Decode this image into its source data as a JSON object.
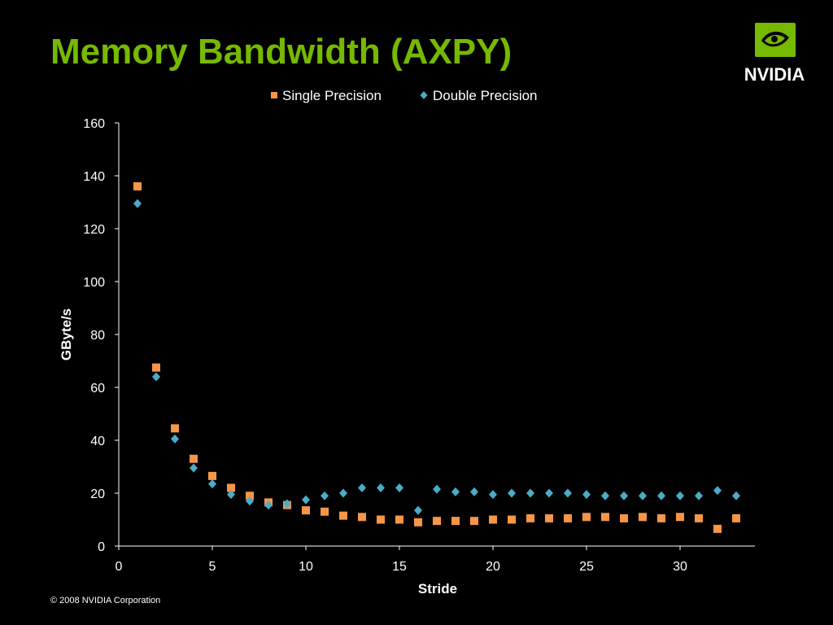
{
  "slide": {
    "title": "Memory Bandwidth (AXPY)",
    "footer": "© 2008 NVIDIA Corporation",
    "title_color": "#76b900",
    "background": "#000000"
  },
  "logo": {
    "wordmark": "NVIDIA",
    "icon": "nvidia-eye-icon",
    "color": "#76b900"
  },
  "chart_data": {
    "type": "scatter",
    "title": "",
    "xlabel": "Stride",
    "ylabel": "GByte/s",
    "xlim": [
      0,
      34
    ],
    "ylim": [
      0,
      160
    ],
    "x_ticks": [
      0,
      5,
      10,
      15,
      20,
      25,
      30
    ],
    "y_ticks": [
      0,
      20,
      40,
      60,
      80,
      100,
      120,
      140,
      160
    ],
    "grid": false,
    "legend_position": "top-center",
    "series": [
      {
        "name": "Single Precision",
        "marker": "square",
        "color": "#f79646",
        "x": [
          1,
          2,
          3,
          4,
          5,
          6,
          7,
          8,
          9,
          10,
          11,
          12,
          13,
          14,
          15,
          16,
          17,
          18,
          19,
          20,
          21,
          22,
          23,
          24,
          25,
          26,
          27,
          28,
          29,
          30,
          31,
          32,
          33
        ],
        "y": [
          136,
          67.5,
          44.5,
          33,
          26.5,
          22,
          19,
          16.5,
          15.5,
          13.5,
          13,
          11.5,
          11,
          10,
          10,
          9,
          9.5,
          9.5,
          9.5,
          10,
          10,
          10.5,
          10.5,
          10.5,
          11,
          11,
          10.5,
          11,
          10.5,
          11,
          10.5,
          6.5,
          10.5
        ]
      },
      {
        "name": "Double Precision",
        "marker": "diamond",
        "color": "#4bacc6",
        "x": [
          1,
          2,
          3,
          4,
          5,
          6,
          7,
          8,
          9,
          10,
          11,
          12,
          13,
          14,
          15,
          16,
          17,
          18,
          19,
          20,
          21,
          22,
          23,
          24,
          25,
          26,
          27,
          28,
          29,
          30,
          31,
          32,
          33
        ],
        "y": [
          129.5,
          64,
          40.5,
          29.5,
          23.5,
          19.5,
          17,
          15.5,
          16,
          17.5,
          19,
          20,
          22,
          22,
          22,
          13.5,
          21.5,
          20.5,
          20.5,
          19.5,
          20,
          20,
          20,
          20,
          19.5,
          19,
          19,
          19,
          19,
          19,
          19,
          21,
          19
        ]
      }
    ]
  }
}
